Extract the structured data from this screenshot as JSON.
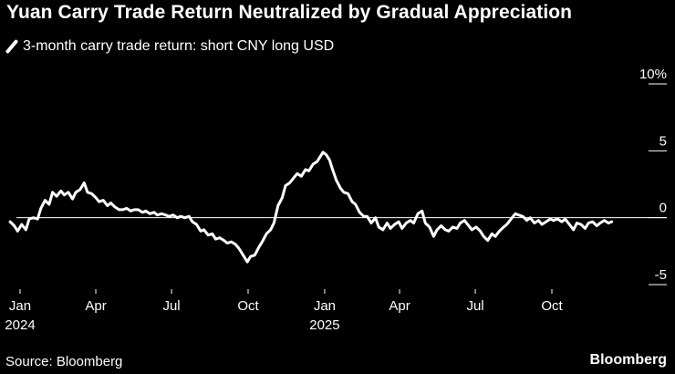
{
  "header": {
    "title": "Yuan Carry Trade Return Neutralized by Gradual Appreciation"
  },
  "legend": {
    "label": "3-month carry trade return: short CNY long USD",
    "icon": "line-swatch-icon"
  },
  "footer": {
    "source": "Source: Bloomberg",
    "brand": "Bloomberg"
  },
  "colors": {
    "background": "#000000",
    "line": "#ffffff",
    "text": "#ffffff"
  },
  "chart_data": {
    "type": "line",
    "title": "Yuan Carry Trade Return Neutralized by Gradual Appreciation",
    "xlabel": "",
    "ylabel": "",
    "ylim": [
      -5,
      10
    ],
    "y_unit": "%",
    "y_ticks": [
      {
        "value": 10,
        "label": "10%"
      },
      {
        "value": 5,
        "label": "5"
      },
      {
        "value": 0,
        "label": "0"
      },
      {
        "value": -5,
        "label": "-5"
      }
    ],
    "x_ticks": [
      {
        "date": "2024-01-01",
        "label": "Jan",
        "sublabel": "2024"
      },
      {
        "date": "2024-04-01",
        "label": "Apr",
        "sublabel": ""
      },
      {
        "date": "2024-07-01",
        "label": "Jul",
        "sublabel": ""
      },
      {
        "date": "2024-10-01",
        "label": "Oct",
        "sublabel": ""
      },
      {
        "date": "2025-01-01",
        "label": "Jan",
        "sublabel": "2025"
      },
      {
        "date": "2025-04-01",
        "label": "Apr",
        "sublabel": ""
      },
      {
        "date": "2025-07-01",
        "label": "Jul",
        "sublabel": ""
      },
      {
        "date": "2025-10-01",
        "label": "Oct",
        "sublabel": ""
      }
    ],
    "zero_line": true,
    "grid": false,
    "legend_position": "top-left",
    "series": [
      {
        "name": "3-month carry trade return: short CNY long USD",
        "points": [
          {
            "x": "2023-12-20",
            "y": -0.3
          },
          {
            "x": "2023-12-25",
            "y": -0.6
          },
          {
            "x": "2023-12-29",
            "y": -1.0
          },
          {
            "x": "2024-01-03",
            "y": -0.5
          },
          {
            "x": "2024-01-08",
            "y": -0.9
          },
          {
            "x": "2024-01-12",
            "y": -0.1
          },
          {
            "x": "2024-01-17",
            "y": 0.0
          },
          {
            "x": "2024-01-22",
            "y": -0.1
          },
          {
            "x": "2024-01-26",
            "y": 0.7
          },
          {
            "x": "2024-01-31",
            "y": 1.3
          },
          {
            "x": "2024-02-05",
            "y": 1.0
          },
          {
            "x": "2024-02-09",
            "y": 1.9
          },
          {
            "x": "2024-02-14",
            "y": 1.6
          },
          {
            "x": "2024-02-19",
            "y": 2.0
          },
          {
            "x": "2024-02-23",
            "y": 1.7
          },
          {
            "x": "2024-02-28",
            "y": 1.9
          },
          {
            "x": "2024-03-04",
            "y": 1.4
          },
          {
            "x": "2024-03-08",
            "y": 1.9
          },
          {
            "x": "2024-03-13",
            "y": 2.1
          },
          {
            "x": "2024-03-18",
            "y": 2.6
          },
          {
            "x": "2024-03-22",
            "y": 1.9
          },
          {
            "x": "2024-03-27",
            "y": 1.8
          },
          {
            "x": "2024-04-01",
            "y": 1.5
          },
          {
            "x": "2024-04-05",
            "y": 1.2
          },
          {
            "x": "2024-04-10",
            "y": 1.3
          },
          {
            "x": "2024-04-15",
            "y": 0.9
          },
          {
            "x": "2024-04-19",
            "y": 1.1
          },
          {
            "x": "2024-04-24",
            "y": 0.8
          },
          {
            "x": "2024-04-29",
            "y": 0.6
          },
          {
            "x": "2024-05-03",
            "y": 0.6
          },
          {
            "x": "2024-05-08",
            "y": 0.7
          },
          {
            "x": "2024-05-13",
            "y": 0.5
          },
          {
            "x": "2024-05-17",
            "y": 0.6
          },
          {
            "x": "2024-05-22",
            "y": 0.6
          },
          {
            "x": "2024-05-27",
            "y": 0.4
          },
          {
            "x": "2024-05-31",
            "y": 0.5
          },
          {
            "x": "2024-06-05",
            "y": 0.3
          },
          {
            "x": "2024-06-10",
            "y": 0.4
          },
          {
            "x": "2024-06-14",
            "y": 0.2
          },
          {
            "x": "2024-06-19",
            "y": 0.3
          },
          {
            "x": "2024-06-24",
            "y": 0.2
          },
          {
            "x": "2024-06-28",
            "y": 0.1
          },
          {
            "x": "2024-07-03",
            "y": 0.2
          },
          {
            "x": "2024-07-08",
            "y": 0.0
          },
          {
            "x": "2024-07-12",
            "y": 0.1
          },
          {
            "x": "2024-07-17",
            "y": 0.0
          },
          {
            "x": "2024-07-22",
            "y": 0.1
          },
          {
            "x": "2024-07-26",
            "y": -0.3
          },
          {
            "x": "2024-07-31",
            "y": -0.5
          },
          {
            "x": "2024-08-05",
            "y": -1.0
          },
          {
            "x": "2024-08-09",
            "y": -0.9
          },
          {
            "x": "2024-08-14",
            "y": -1.3
          },
          {
            "x": "2024-08-19",
            "y": -1.2
          },
          {
            "x": "2024-08-23",
            "y": -1.6
          },
          {
            "x": "2024-08-28",
            "y": -1.5
          },
          {
            "x": "2024-09-02",
            "y": -1.7
          },
          {
            "x": "2024-09-06",
            "y": -1.9
          },
          {
            "x": "2024-09-11",
            "y": -1.8
          },
          {
            "x": "2024-09-16",
            "y": -2.0
          },
          {
            "x": "2024-09-20",
            "y": -2.3
          },
          {
            "x": "2024-09-25",
            "y": -2.8
          },
          {
            "x": "2024-09-30",
            "y": -3.3
          },
          {
            "x": "2024-10-04",
            "y": -2.9
          },
          {
            "x": "2024-10-09",
            "y": -2.8
          },
          {
            "x": "2024-10-14",
            "y": -2.2
          },
          {
            "x": "2024-10-18",
            "y": -1.8
          },
          {
            "x": "2024-10-23",
            "y": -1.2
          },
          {
            "x": "2024-10-28",
            "y": -0.9
          },
          {
            "x": "2024-11-01",
            "y": -0.4
          },
          {
            "x": "2024-11-06",
            "y": 0.9
          },
          {
            "x": "2024-11-11",
            "y": 1.5
          },
          {
            "x": "2024-11-15",
            "y": 2.4
          },
          {
            "x": "2024-11-20",
            "y": 2.6
          },
          {
            "x": "2024-11-25",
            "y": 3.0
          },
          {
            "x": "2024-11-29",
            "y": 3.3
          },
          {
            "x": "2024-12-04",
            "y": 3.1
          },
          {
            "x": "2024-12-09",
            "y": 3.6
          },
          {
            "x": "2024-12-13",
            "y": 3.5
          },
          {
            "x": "2024-12-18",
            "y": 4.0
          },
          {
            "x": "2024-12-23",
            "y": 4.2
          },
          {
            "x": "2024-12-27",
            "y": 4.6
          },
          {
            "x": "2024-12-30",
            "y": 4.9
          },
          {
            "x": "2025-01-03",
            "y": 4.7
          },
          {
            "x": "2025-01-07",
            "y": 4.3
          },
          {
            "x": "2025-01-10",
            "y": 3.7
          },
          {
            "x": "2025-01-15",
            "y": 2.8
          },
          {
            "x": "2025-01-20",
            "y": 2.2
          },
          {
            "x": "2025-01-24",
            "y": 1.9
          },
          {
            "x": "2025-01-29",
            "y": 1.8
          },
          {
            "x": "2025-02-03",
            "y": 1.2
          },
          {
            "x": "2025-02-07",
            "y": 1.0
          },
          {
            "x": "2025-02-12",
            "y": 0.4
          },
          {
            "x": "2025-02-17",
            "y": 0.1
          },
          {
            "x": "2025-02-21",
            "y": 0.1
          },
          {
            "x": "2025-02-26",
            "y": -0.4
          },
          {
            "x": "2025-03-03",
            "y": 0.0
          },
          {
            "x": "2025-03-07",
            "y": -0.7
          },
          {
            "x": "2025-03-12",
            "y": -0.9
          },
          {
            "x": "2025-03-17",
            "y": -0.4
          },
          {
            "x": "2025-03-21",
            "y": -0.8
          },
          {
            "x": "2025-03-26",
            "y": -0.5
          },
          {
            "x": "2025-03-31",
            "y": -0.3
          },
          {
            "x": "2025-04-04",
            "y": -0.8
          },
          {
            "x": "2025-04-09",
            "y": -0.4
          },
          {
            "x": "2025-04-14",
            "y": -0.2
          },
          {
            "x": "2025-04-18",
            "y": -0.4
          },
          {
            "x": "2025-04-23",
            "y": 0.3
          },
          {
            "x": "2025-04-28",
            "y": 0.5
          },
          {
            "x": "2025-05-02",
            "y": -0.4
          },
          {
            "x": "2025-05-07",
            "y": -0.7
          },
          {
            "x": "2025-05-12",
            "y": -1.4
          },
          {
            "x": "2025-05-16",
            "y": -0.9
          },
          {
            "x": "2025-05-21",
            "y": -0.6
          },
          {
            "x": "2025-05-26",
            "y": -0.9
          },
          {
            "x": "2025-05-30",
            "y": -1.0
          },
          {
            "x": "2025-06-04",
            "y": -0.7
          },
          {
            "x": "2025-06-09",
            "y": -0.8
          },
          {
            "x": "2025-06-13",
            "y": -0.4
          },
          {
            "x": "2025-06-18",
            "y": -0.2
          },
          {
            "x": "2025-06-23",
            "y": -0.6
          },
          {
            "x": "2025-06-27",
            "y": -0.9
          },
          {
            "x": "2025-07-02",
            "y": -0.7
          },
          {
            "x": "2025-07-07",
            "y": -1.0
          },
          {
            "x": "2025-07-11",
            "y": -1.4
          },
          {
            "x": "2025-07-16",
            "y": -1.7
          },
          {
            "x": "2025-07-21",
            "y": -1.2
          },
          {
            "x": "2025-07-25",
            "y": -1.4
          },
          {
            "x": "2025-07-30",
            "y": -1.0
          },
          {
            "x": "2025-08-04",
            "y": -0.7
          },
          {
            "x": "2025-08-08",
            "y": -0.5
          },
          {
            "x": "2025-08-13",
            "y": -0.1
          },
          {
            "x": "2025-08-18",
            "y": 0.3
          },
          {
            "x": "2025-08-22",
            "y": 0.2
          },
          {
            "x": "2025-08-27",
            "y": 0.1
          },
          {
            "x": "2025-09-01",
            "y": -0.2
          },
          {
            "x": "2025-09-05",
            "y": 0.0
          },
          {
            "x": "2025-09-10",
            "y": -0.4
          },
          {
            "x": "2025-09-15",
            "y": -0.2
          },
          {
            "x": "2025-09-19",
            "y": -0.5
          },
          {
            "x": "2025-09-24",
            "y": -0.3
          },
          {
            "x": "2025-09-29",
            "y": -0.1
          },
          {
            "x": "2025-10-03",
            "y": -0.2
          },
          {
            "x": "2025-10-08",
            "y": -0.1
          },
          {
            "x": "2025-10-13",
            "y": -0.3
          },
          {
            "x": "2025-10-17",
            "y": -0.1
          },
          {
            "x": "2025-10-22",
            "y": -0.5
          },
          {
            "x": "2025-10-27",
            "y": -0.9
          },
          {
            "x": "2025-10-31",
            "y": -0.4
          },
          {
            "x": "2025-11-05",
            "y": -0.5
          },
          {
            "x": "2025-11-10",
            "y": -0.8
          },
          {
            "x": "2025-11-14",
            "y": -0.4
          },
          {
            "x": "2025-11-19",
            "y": -0.3
          },
          {
            "x": "2025-11-24",
            "y": -0.6
          },
          {
            "x": "2025-11-28",
            "y": -0.4
          },
          {
            "x": "2025-12-03",
            "y": -0.2
          },
          {
            "x": "2025-12-08",
            "y": -0.4
          },
          {
            "x": "2025-12-12",
            "y": -0.3
          }
        ]
      }
    ]
  }
}
